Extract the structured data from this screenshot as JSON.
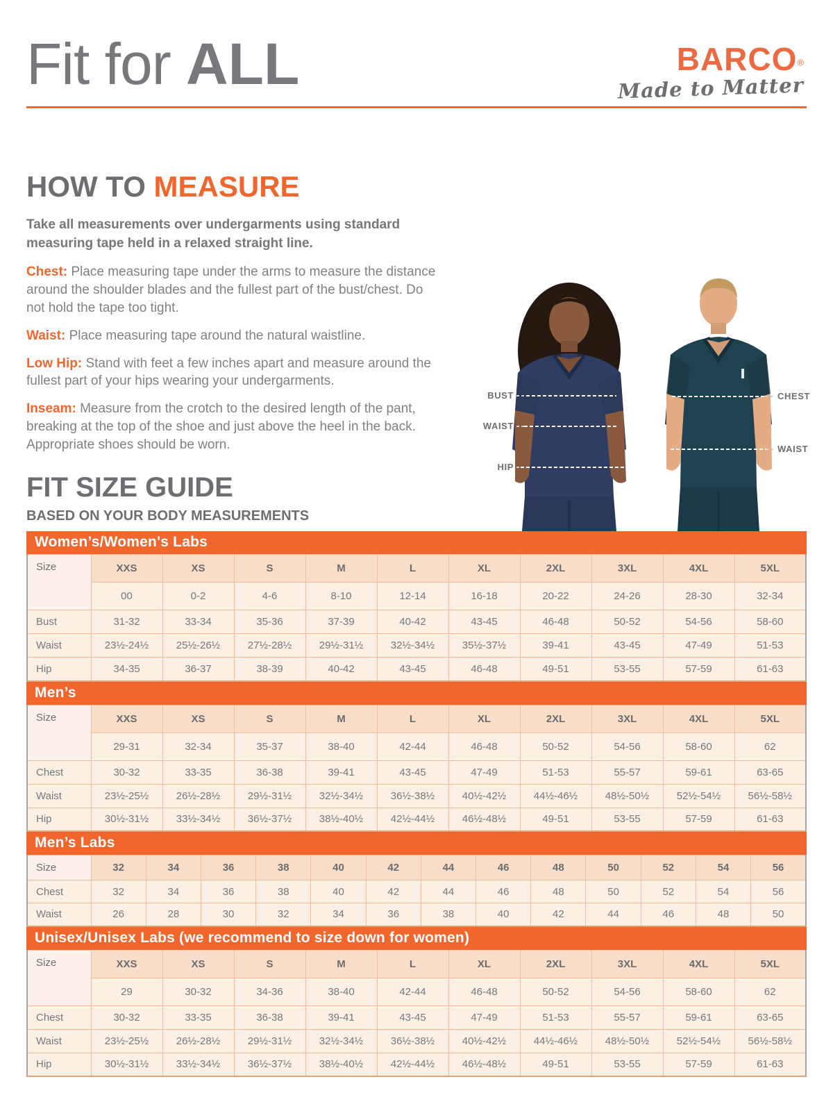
{
  "header": {
    "title_regular": "Fit for ",
    "title_bold": "ALL",
    "logo_brand": "BARCO",
    "logo_reg": "®",
    "logo_tagline": "Made to Matter"
  },
  "how_to_measure": {
    "title_gray": "HOW TO ",
    "title_accent": "MEASURE",
    "intro": "Take all measurements over undergarments using standard measuring tape held in a relaxed straight line.",
    "items": [
      {
        "label": "Chest:",
        "text": " Place measuring tape under the arms to measure the distance around the shoulder blades and the fullest part of the bust/chest. Do not hold the tape too tight."
      },
      {
        "label": "Waist:",
        "text": " Place measuring tape around the natural waistline."
      },
      {
        "label": "Low Hip:",
        "text": " Stand with feet a few inches apart and measure around the fullest part of your hips wearing your undergarments."
      },
      {
        "label": "Inseam:",
        "text": " Measure from the crotch to the desired length of the pant, breaking at the top of the shoe and just above the heel in the back. Appropriate shoes should be worn."
      }
    ]
  },
  "figure_labels": {
    "bust": "BUST",
    "waist_left": "WAIST",
    "hip": "HIP",
    "chest": "CHEST",
    "waist_right": "WAIST"
  },
  "size_guide": {
    "title": "FIT SIZE GUIDE",
    "subtitle": "BASED ON YOUR BODY MEASUREMENTS",
    "tables": [
      {
        "title": "Women’s/Women's Labs",
        "size_label": "Size",
        "sizes": [
          "XXS",
          "XS",
          "S",
          "M",
          "L",
          "XL",
          "2XL",
          "3XL",
          "4XL",
          "5XL"
        ],
        "size_ranges": [
          "00",
          "0-2",
          "4-6",
          "8-10",
          "12-14",
          "16-18",
          "20-22",
          "24-26",
          "28-30",
          "32-34"
        ],
        "rows": [
          {
            "label": "Bust",
            "values": [
              "31-32",
              "33-34",
              "35-36",
              "37-39",
              "40-42",
              "43-45",
              "46-48",
              "50-52",
              "54-56",
              "58-60"
            ]
          },
          {
            "label": "Waist",
            "values": [
              "23½-24½",
              "25½-26½",
              "27½-28½",
              "29½-31½",
              "32½-34½",
              "35½-37½",
              "39-41",
              "43-45",
              "47-49",
              "51-53"
            ]
          },
          {
            "label": "Hip",
            "values": [
              "34-35",
              "36-37",
              "38-39",
              "40-42",
              "43-45",
              "46-48",
              "49-51",
              "53-55",
              "57-59",
              "61-63"
            ]
          }
        ]
      },
      {
        "title": "Men’s",
        "size_label": "Size",
        "sizes": [
          "XXS",
          "XS",
          "S",
          "M",
          "L",
          "XL",
          "2XL",
          "3XL",
          "4XL",
          "5XL"
        ],
        "size_ranges": [
          "29-31",
          "32-34",
          "35-37",
          "38-40",
          "42-44",
          "46-48",
          "50-52",
          "54-56",
          "58-60",
          "62"
        ],
        "rows": [
          {
            "label": "Chest",
            "values": [
              "30-32",
              "33-35",
              "36-38",
              "39-41",
              "43-45",
              "47-49",
              "51-53",
              "55-57",
              "59-61",
              "63-65"
            ]
          },
          {
            "label": "Waist",
            "values": [
              "23½-25½",
              "26½-28½",
              "29½-31½",
              "32½-34½",
              "36½-38½",
              "40½-42½",
              "44½-46½",
              "48½-50½",
              "52½-54½",
              "56½-58½"
            ]
          },
          {
            "label": "Hip",
            "values": [
              "30½-31½",
              "33½-34½",
              "36½-37½",
              "38½-40½",
              "42½-44½",
              "46½-48½",
              "49-51",
              "53-55",
              "57-59",
              "61-63"
            ]
          }
        ]
      },
      {
        "title": "Men’s Labs",
        "size_label": "Size",
        "labs": true,
        "sizes": [
          "32",
          "34",
          "36",
          "38",
          "40",
          "42",
          "44",
          "46",
          "48",
          "50",
          "52",
          "54",
          "56"
        ],
        "size_ranges": null,
        "rows": [
          {
            "label": "Chest",
            "values": [
              "32",
              "34",
              "36",
              "38",
              "40",
              "42",
              "44",
              "46",
              "48",
              "50",
              "52",
              "54",
              "56"
            ]
          },
          {
            "label": "Waist",
            "values": [
              "26",
              "28",
              "30",
              "32",
              "34",
              "36",
              "38",
              "40",
              "42",
              "44",
              "46",
              "48",
              "50"
            ]
          }
        ]
      },
      {
        "title": "Unisex/Unisex Labs (we recommend to size down for women)",
        "size_label": "Size",
        "sizes": [
          "XXS",
          "XS",
          "S",
          "M",
          "L",
          "XL",
          "2XL",
          "3XL",
          "4XL",
          "5XL"
        ],
        "size_ranges": [
          "29",
          "30-32",
          "34-36",
          "38-40",
          "42-44",
          "46-48",
          "50-52",
          "54-56",
          "58-60",
          "62"
        ],
        "rows": [
          {
            "label": "Chest",
            "values": [
              "30-32",
              "33-35",
              "36-38",
              "39-41",
              "43-45",
              "47-49",
              "51-53",
              "55-57",
              "59-61",
              "63-65"
            ]
          },
          {
            "label": "Waist",
            "values": [
              "23½-25½",
              "26½-28½",
              "29½-31½",
              "32½-34½",
              "36½-38½",
              "40½-42½",
              "44½-46½",
              "48½-50½",
              "52½-54½",
              "56½-58½"
            ]
          },
          {
            "label": "Hip",
            "values": [
              "30½-31½",
              "33½-34½",
              "36½-37½",
              "38½-40½",
              "42½-44½",
              "46½-48½",
              "49-51",
              "53-55",
              "57-59",
              "61-63"
            ]
          }
        ]
      }
    ]
  },
  "colors": {
    "accent_orange": "#F0662D",
    "logo_orange": "#EC6A41",
    "heading_gray": "#6D6E71",
    "body_gray": "#808184",
    "band_text": "#FFFFFF",
    "header_cell_bg": "#F8DEC8",
    "body_cell_bg": "#FCEFE4",
    "cell_border": "#F2BC96",
    "woman_scrub_navy": "#2F3D63",
    "man_scrub_teal": "#20414F"
  }
}
